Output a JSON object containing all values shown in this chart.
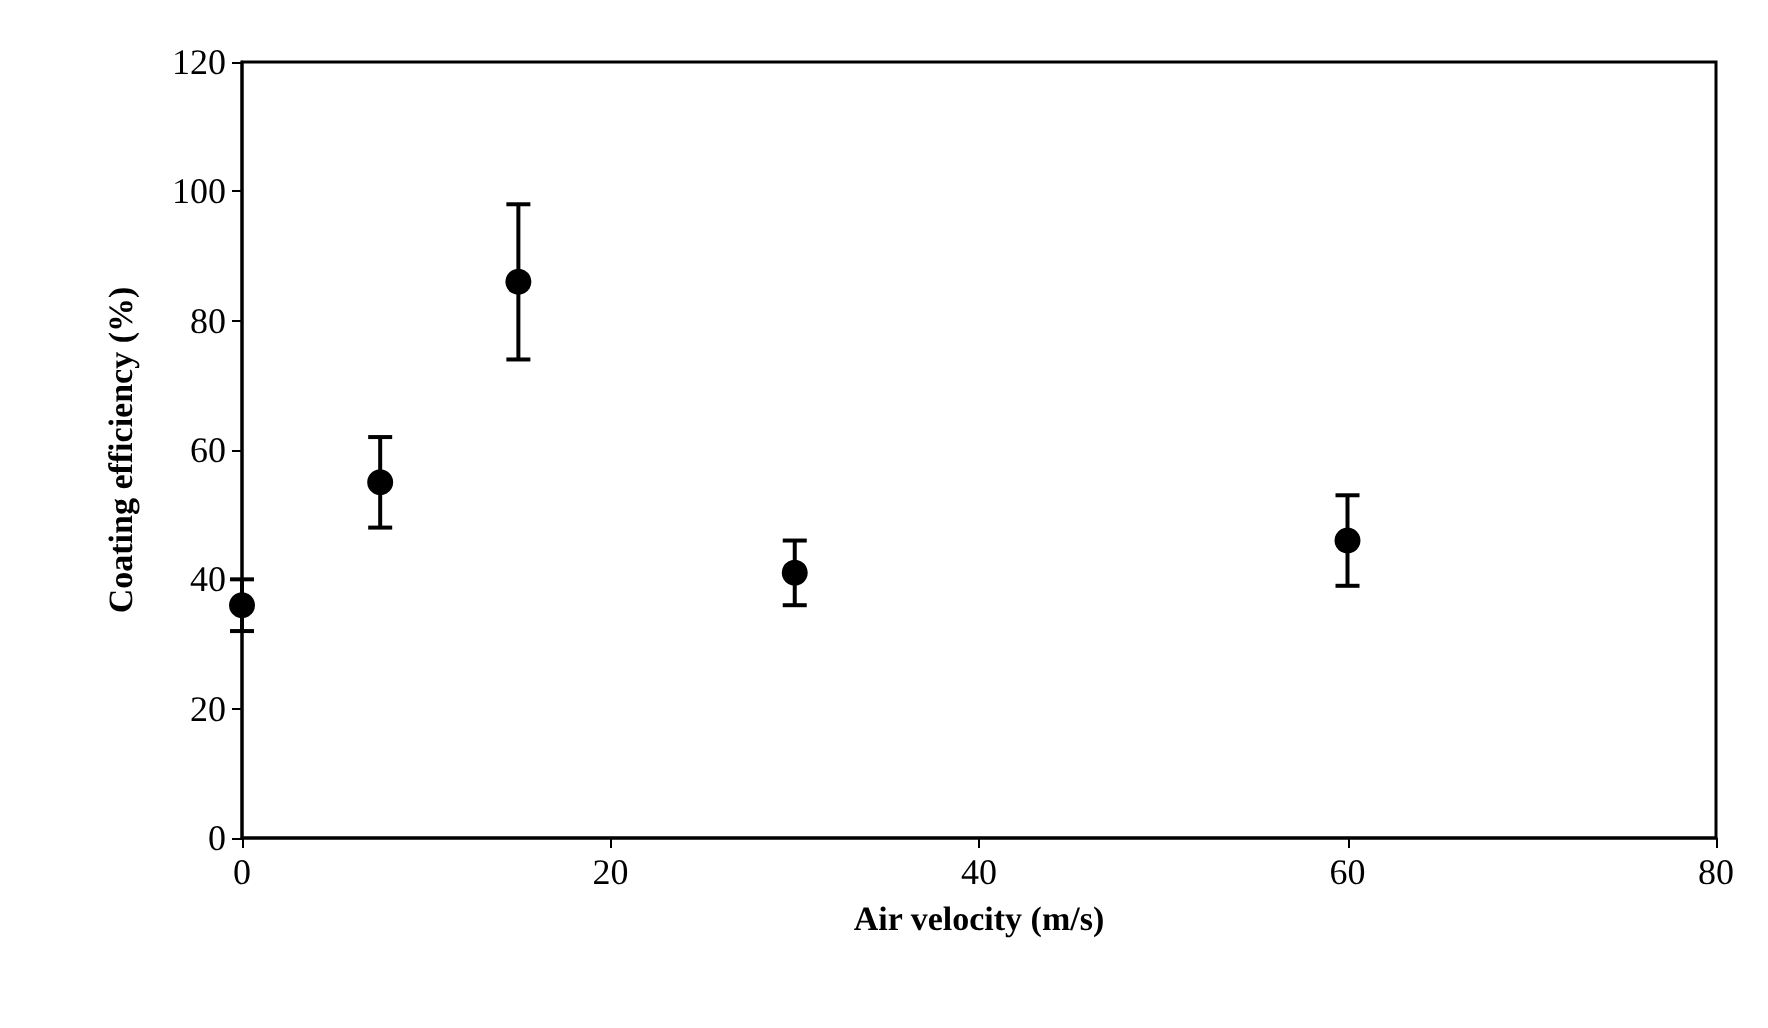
{
  "chart_data": {
    "type": "scatter",
    "xlabel": "Air velocity (m/s)",
    "ylabel": "Coating efficiency (%)",
    "x": [
      0,
      7.5,
      15,
      30,
      60
    ],
    "values": [
      36,
      55,
      86,
      41,
      46
    ],
    "errors": [
      4,
      7,
      12,
      5,
      7
    ],
    "color": "#000000",
    "marker": "circle",
    "xlim": [
      0,
      80
    ],
    "xticks": [
      0,
      20,
      40,
      60,
      80
    ],
    "ylim": [
      0,
      120
    ],
    "yticks": [
      0,
      20,
      40,
      60,
      80,
      100,
      120
    ]
  }
}
